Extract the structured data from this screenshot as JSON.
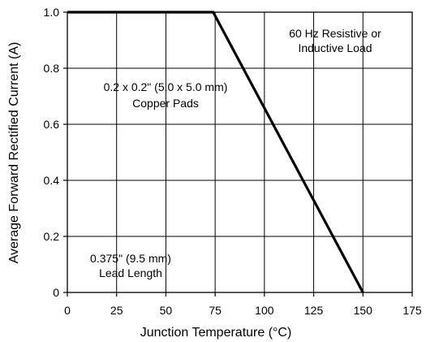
{
  "chart_data": {
    "type": "line",
    "xlabel": "Junction Temperature (°C)",
    "ylabel": "Average Forward Rectified Current (A)",
    "xlim": [
      0,
      175
    ],
    "ylim": [
      0,
      1.0
    ],
    "grid": true,
    "x_ticks": [
      0,
      25,
      50,
      75,
      100,
      125,
      150,
      175
    ],
    "y_ticks": [
      0,
      0.2,
      0.4,
      0.6,
      0.8,
      1.0
    ],
    "x_tick_labels": [
      "0",
      "25",
      "50",
      "75",
      "100",
      "125",
      "150",
      "175"
    ],
    "y_tick_labels": [
      "0",
      "0.2",
      "0.4",
      "0.6",
      "0.8",
      "1.0"
    ],
    "series": [
      {
        "x": [
          0,
          74,
          150
        ],
        "y": [
          1.0,
          1.0,
          0
        ]
      }
    ],
    "annotations": [
      {
        "lines": [
          "60 Hz Resistive or",
          "Inductive Load"
        ]
      },
      {
        "lines": [
          "0.2 x 0.2\" (5.0 x 5.0 mm)",
          "Copper Pads"
        ]
      },
      {
        "lines": [
          "0.375\" (9.5 mm)",
          "Lead Length"
        ]
      }
    ]
  }
}
